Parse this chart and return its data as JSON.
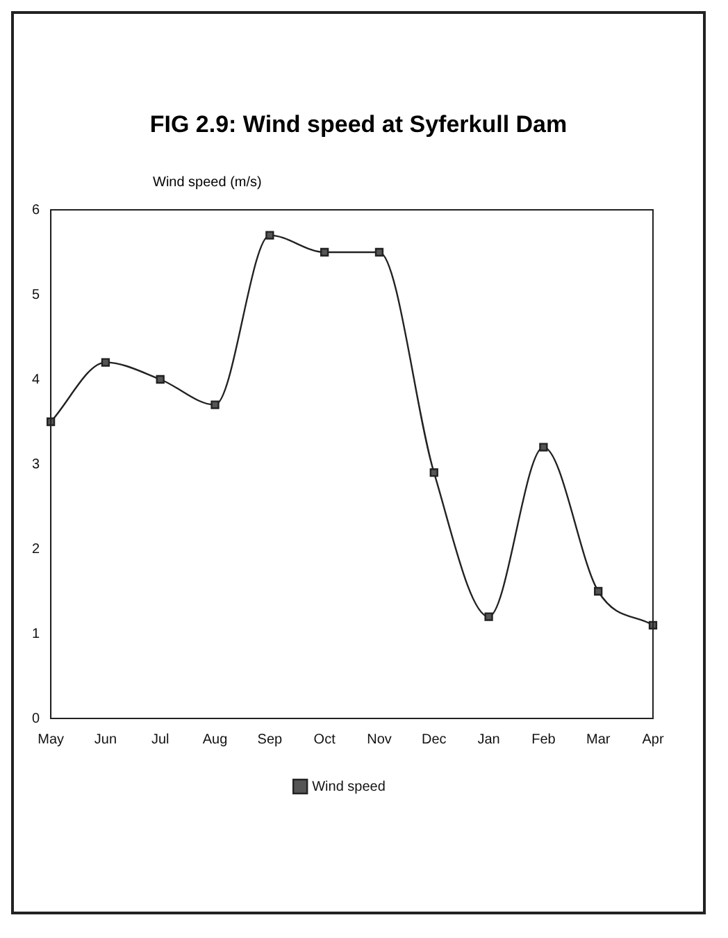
{
  "chart_data": {
    "type": "line",
    "title": "FIG 2.9: Wind speed at Syferkull Dam",
    "ylabel": "Wind speed (m/s)",
    "categories": [
      "May",
      "Jun",
      "Jul",
      "Aug",
      "Sep",
      "Oct",
      "Nov",
      "Dec",
      "Jan",
      "Feb",
      "Mar",
      "Apr"
    ],
    "series": [
      {
        "name": "Wind speed",
        "color": "#222222",
        "values": [
          3.5,
          4.2,
          4.0,
          3.7,
          5.7,
          5.5,
          5.5,
          2.9,
          1.2,
          3.2,
          1.5,
          1.1
        ]
      }
    ],
    "ylim": [
      0,
      6
    ],
    "yticks": [
      0,
      1,
      2,
      3,
      4,
      5,
      6
    ],
    "grid": false,
    "legend": "bottom",
    "marker": "square",
    "line_style": "solid"
  }
}
